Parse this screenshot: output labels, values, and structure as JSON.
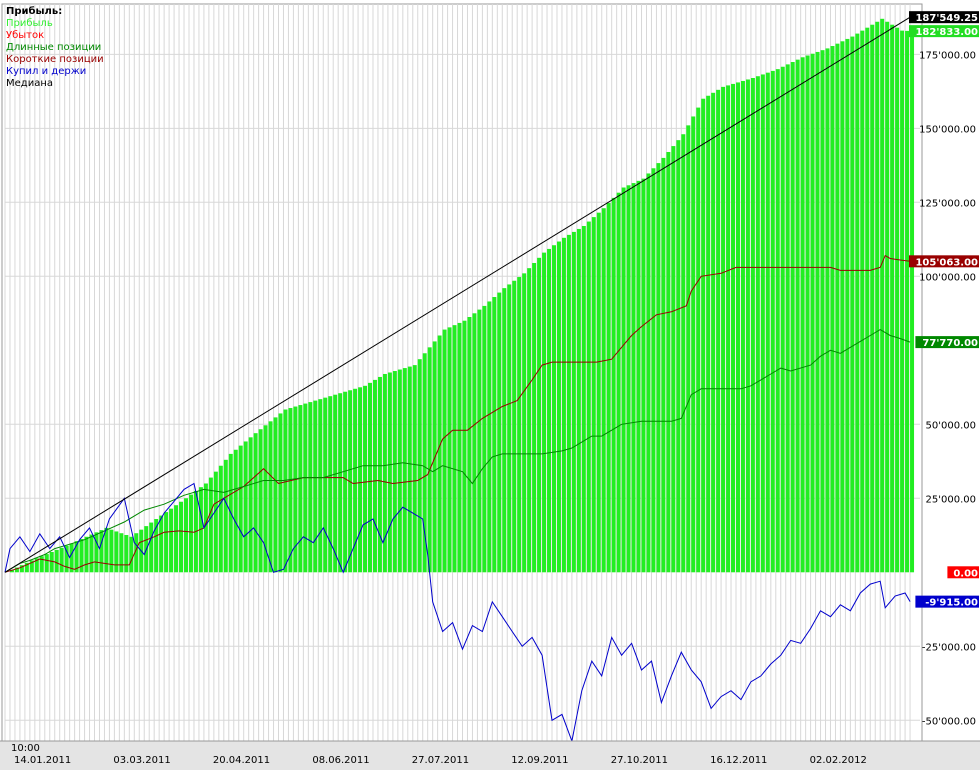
{
  "chart_data": {
    "type": "bar",
    "legend": {
      "title": "Прибыль:",
      "placement": "top-left",
      "items": [
        {
          "label": "Прибыль",
          "color": "#33ee33"
        },
        {
          "label": "Убыток",
          "color": "#ff0000"
        },
        {
          "label": "Длинные позиции",
          "color": "#008800"
        },
        {
          "label": "Короткие позиции",
          "color": "#990000"
        },
        {
          "label": "Купил и держи",
          "color": "#0000cc"
        },
        {
          "label": "Медиана",
          "color": "#000000"
        }
      ]
    },
    "ylim": [
      -57000,
      192000
    ],
    "y_ticks": [
      {
        "value": 175000,
        "label": "175'000.00"
      },
      {
        "value": 150000,
        "label": "150'000.00"
      },
      {
        "value": 125000,
        "label": "125'000.00"
      },
      {
        "value": 100000,
        "label": "100'000.00"
      },
      {
        "value": 50000,
        "label": "50'000.00"
      },
      {
        "value": 25000,
        "label": "25'000.00"
      },
      {
        "value": -25000,
        "label": "-25'000.00"
      },
      {
        "value": -50000,
        "label": "-50'000.00"
      }
    ],
    "x_range": [
      0,
      184
    ],
    "x_ticks": [
      {
        "x": 1,
        "label": "14.01.2011"
      },
      {
        "x": 21,
        "label": "03.03.2011"
      },
      {
        "x": 41,
        "label": "20.04.2011"
      },
      {
        "x": 61,
        "label": "08.06.2011"
      },
      {
        "x": 81,
        "label": "27.07.2011"
      },
      {
        "x": 101,
        "label": "12.09.2011"
      },
      {
        "x": 121,
        "label": "27.10.2011"
      },
      {
        "x": 141,
        "label": "16.12.2011"
      },
      {
        "x": 161,
        "label": "02.02.2012"
      }
    ],
    "time_label": "10:00",
    "value_badges": [
      {
        "value": 187549.25,
        "label": "187'549.25",
        "color": "#000000"
      },
      {
        "value": 182833,
        "label": "182'833.00",
        "color": "#22dd22"
      },
      {
        "value": 105063,
        "label": "105'063.00",
        "color": "#990000"
      },
      {
        "value": 77770,
        "label": "77'770.00",
        "color": "#008800"
      },
      {
        "value": 0,
        "label": "0.00",
        "color": "#ff0000"
      },
      {
        "value": -9915,
        "label": "-9'915.00",
        "color": "#0000cc"
      }
    ],
    "series": [
      {
        "name": "Прибыль",
        "kind": "bar",
        "color": "#22ee22",
        "anchors": [
          [
            0,
            0
          ],
          [
            5,
            4000
          ],
          [
            12,
            9000
          ],
          [
            20,
            15000
          ],
          [
            25,
            12000
          ],
          [
            30,
            18000
          ],
          [
            36,
            25000
          ],
          [
            40,
            30000
          ],
          [
            45,
            40000
          ],
          [
            50,
            47000
          ],
          [
            56,
            55000
          ],
          [
            60,
            57000
          ],
          [
            66,
            60000
          ],
          [
            72,
            63000
          ],
          [
            76,
            67000
          ],
          [
            82,
            70000
          ],
          [
            85,
            76000
          ],
          [
            88,
            82000
          ],
          [
            92,
            85000
          ],
          [
            96,
            90000
          ],
          [
            100,
            96000
          ],
          [
            104,
            101000
          ],
          [
            108,
            108000
          ],
          [
            112,
            113000
          ],
          [
            116,
            117000
          ],
          [
            120,
            123000
          ],
          [
            124,
            130000
          ],
          [
            128,
            133000
          ],
          [
            132,
            140000
          ],
          [
            136,
            148000
          ],
          [
            140,
            160000
          ],
          [
            144,
            164000
          ],
          [
            150,
            167000
          ],
          [
            155,
            170000
          ],
          [
            160,
            174000
          ],
          [
            165,
            177000
          ],
          [
            170,
            181000
          ],
          [
            174,
            185000
          ],
          [
            176,
            187000
          ],
          [
            178,
            185000
          ],
          [
            180,
            183000
          ],
          [
            182,
            182833
          ]
        ]
      },
      {
        "name": "Короткие позиции",
        "kind": "line",
        "color": "#990000",
        "anchors": [
          [
            0,
            0
          ],
          [
            3,
            1500
          ],
          [
            5,
            3000
          ],
          [
            7,
            4500
          ],
          [
            10,
            3500
          ],
          [
            12,
            2000
          ],
          [
            14,
            1000
          ],
          [
            16,
            2500
          ],
          [
            18,
            3500
          ],
          [
            22,
            2500
          ],
          [
            25,
            2500
          ],
          [
            27,
            10000
          ],
          [
            30,
            12000
          ],
          [
            32,
            13500
          ],
          [
            35,
            14000
          ],
          [
            38,
            13500
          ],
          [
            40,
            15000
          ],
          [
            42,
            23000
          ],
          [
            45,
            26000
          ],
          [
            48,
            29000
          ],
          [
            52,
            35000
          ],
          [
            55,
            30000
          ],
          [
            60,
            32000
          ],
          [
            68,
            32000
          ],
          [
            70,
            30000
          ],
          [
            75,
            31000
          ],
          [
            78,
            30000
          ],
          [
            83,
            31000
          ],
          [
            85,
            33000
          ],
          [
            88,
            45000
          ],
          [
            90,
            48000
          ],
          [
            93,
            48000
          ],
          [
            96,
            52000
          ],
          [
            100,
            56000
          ],
          [
            103,
            58000
          ],
          [
            106,
            65000
          ],
          [
            108,
            70000
          ],
          [
            110,
            71000
          ],
          [
            115,
            71000
          ],
          [
            119,
            71000
          ],
          [
            122,
            72000
          ],
          [
            124,
            76000
          ],
          [
            126,
            80000
          ],
          [
            128,
            83000
          ],
          [
            131,
            87000
          ],
          [
            134,
            88000
          ],
          [
            137,
            90000
          ],
          [
            138,
            95000
          ],
          [
            140,
            100000
          ],
          [
            144,
            101000
          ],
          [
            147,
            103000
          ],
          [
            160,
            103000
          ],
          [
            166,
            103000
          ],
          [
            168,
            102000
          ],
          [
            172,
            102000
          ],
          [
            174,
            102000
          ],
          [
            176,
            103000
          ],
          [
            177,
            107000
          ],
          [
            178,
            106000
          ],
          [
            180,
            105500
          ],
          [
            182,
            105063
          ]
        ]
      },
      {
        "name": "Длинные позиции",
        "kind": "line",
        "color": "#008800",
        "anchors": [
          [
            0,
            0
          ],
          [
            3,
            3000
          ],
          [
            5,
            4000
          ],
          [
            8,
            6000
          ],
          [
            10,
            8000
          ],
          [
            12,
            9000
          ],
          [
            16,
            11000
          ],
          [
            20,
            14000
          ],
          [
            24,
            17000
          ],
          [
            28,
            21000
          ],
          [
            32,
            23000
          ],
          [
            36,
            26000
          ],
          [
            40,
            28000
          ],
          [
            44,
            27000
          ],
          [
            48,
            29000
          ],
          [
            52,
            31000
          ],
          [
            56,
            31000
          ],
          [
            60,
            32000
          ],
          [
            64,
            32000
          ],
          [
            68,
            34000
          ],
          [
            72,
            36000
          ],
          [
            76,
            36000
          ],
          [
            80,
            37000
          ],
          [
            84,
            36000
          ],
          [
            86,
            34000
          ],
          [
            88,
            36000
          ],
          [
            92,
            34000
          ],
          [
            94,
            30000
          ],
          [
            96,
            35000
          ],
          [
            98,
            39000
          ],
          [
            100,
            40000
          ],
          [
            104,
            40000
          ],
          [
            108,
            40000
          ],
          [
            112,
            41000
          ],
          [
            114,
            42000
          ],
          [
            116,
            44000
          ],
          [
            118,
            46000
          ],
          [
            120,
            46000
          ],
          [
            122,
            48000
          ],
          [
            124,
            50000
          ],
          [
            128,
            51000
          ],
          [
            134,
            51000
          ],
          [
            136,
            52000
          ],
          [
            138,
            60000
          ],
          [
            140,
            62000
          ],
          [
            144,
            62000
          ],
          [
            148,
            62000
          ],
          [
            150,
            63000
          ],
          [
            152,
            65000
          ],
          [
            154,
            67000
          ],
          [
            156,
            69000
          ],
          [
            158,
            68000
          ],
          [
            162,
            70000
          ],
          [
            164,
            73000
          ],
          [
            166,
            75000
          ],
          [
            168,
            74000
          ],
          [
            170,
            76000
          ],
          [
            172,
            78000
          ],
          [
            174,
            80000
          ],
          [
            176,
            82000
          ],
          [
            178,
            80000
          ],
          [
            180,
            79000
          ],
          [
            182,
            77770
          ]
        ]
      },
      {
        "name": "Купил и держи",
        "kind": "line",
        "color": "#0000cc",
        "anchors": [
          [
            0,
            0
          ],
          [
            1,
            8000
          ],
          [
            3,
            12000
          ],
          [
            5,
            7000
          ],
          [
            7,
            13000
          ],
          [
            9,
            8000
          ],
          [
            11,
            12000
          ],
          [
            13,
            5000
          ],
          [
            15,
            11000
          ],
          [
            17,
            15000
          ],
          [
            19,
            8000
          ],
          [
            21,
            18000
          ],
          [
            24,
            25000
          ],
          [
            26,
            10000
          ],
          [
            28,
            6000
          ],
          [
            30,
            14000
          ],
          [
            32,
            20000
          ],
          [
            34,
            24000
          ],
          [
            36,
            28000
          ],
          [
            38,
            30000
          ],
          [
            40,
            15000
          ],
          [
            42,
            20000
          ],
          [
            44,
            25000
          ],
          [
            46,
            18000
          ],
          [
            48,
            12000
          ],
          [
            50,
            15000
          ],
          [
            52,
            10000
          ],
          [
            54,
            0
          ],
          [
            56,
            1000
          ],
          [
            58,
            8000
          ],
          [
            60,
            12000
          ],
          [
            62,
            10000
          ],
          [
            64,
            15000
          ],
          [
            66,
            8000
          ],
          [
            68,
            0
          ],
          [
            70,
            8000
          ],
          [
            72,
            16000
          ],
          [
            74,
            18000
          ],
          [
            76,
            10000
          ],
          [
            78,
            18000
          ],
          [
            80,
            22000
          ],
          [
            82,
            20000
          ],
          [
            84,
            18000
          ],
          [
            85,
            6000
          ],
          [
            86,
            -10000
          ],
          [
            88,
            -20000
          ],
          [
            90,
            -17000
          ],
          [
            92,
            -26000
          ],
          [
            94,
            -18000
          ],
          [
            96,
            -20000
          ],
          [
            98,
            -10000
          ],
          [
            100,
            -15000
          ],
          [
            102,
            -20000
          ],
          [
            104,
            -25000
          ],
          [
            106,
            -22000
          ],
          [
            108,
            -28000
          ],
          [
            110,
            -50000
          ],
          [
            112,
            -48000
          ],
          [
            114,
            -57000
          ],
          [
            116,
            -40000
          ],
          [
            118,
            -30000
          ],
          [
            120,
            -35000
          ],
          [
            122,
            -22000
          ],
          [
            124,
            -28000
          ],
          [
            126,
            -24000
          ],
          [
            128,
            -33000
          ],
          [
            130,
            -30000
          ],
          [
            132,
            -44000
          ],
          [
            134,
            -35000
          ],
          [
            136,
            -27000
          ],
          [
            138,
            -33000
          ],
          [
            140,
            -37000
          ],
          [
            142,
            -46000
          ],
          [
            144,
            -42000
          ],
          [
            146,
            -40000
          ],
          [
            148,
            -43000
          ],
          [
            150,
            -37000
          ],
          [
            152,
            -35000
          ],
          [
            154,
            -31000
          ],
          [
            156,
            -28000
          ],
          [
            158,
            -23000
          ],
          [
            160,
            -24000
          ],
          [
            162,
            -19000
          ],
          [
            164,
            -13000
          ],
          [
            166,
            -15000
          ],
          [
            168,
            -11000
          ],
          [
            170,
            -13000
          ],
          [
            172,
            -7000
          ],
          [
            174,
            -4000
          ],
          [
            176,
            -3000
          ],
          [
            177,
            -12000
          ],
          [
            179,
            -8000
          ],
          [
            181,
            -7000
          ],
          [
            182,
            -9915
          ]
        ]
      },
      {
        "name": "Медиана",
        "kind": "line",
        "color": "#000000",
        "anchors": [
          [
            0,
            0
          ],
          [
            182,
            187549.25
          ]
        ]
      }
    ]
  }
}
